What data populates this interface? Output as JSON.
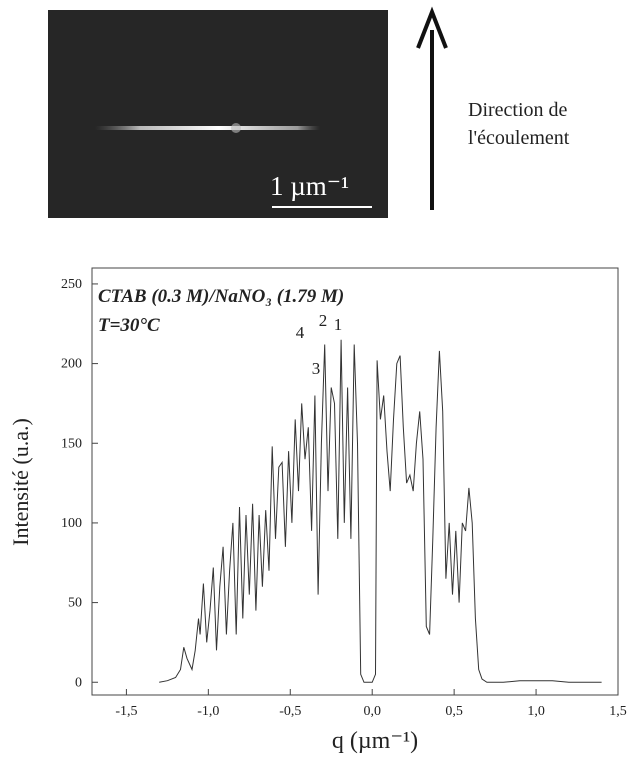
{
  "image": {
    "scale_bar": "1 µm⁻¹"
  },
  "flow_label": [
    "Direction de",
    "l'écoulement"
  ],
  "chart_data": {
    "type": "line",
    "annotations": [
      "CTAB (0.3 M)/NaNO₃ (1.79 M)",
      "T=30°C"
    ],
    "peak_labels": [
      "4",
      "3",
      "2",
      "1"
    ],
    "xlabel": "q (µm⁻¹)",
    "ylabel": "Intensité (u.a.)",
    "color": "#333333",
    "xlim": [
      -1.71,
      1.5
    ],
    "ylim": [
      -8,
      260
    ],
    "xticks": [
      {
        "value": -1.5,
        "label": "-1,5"
      },
      {
        "value": -1.0,
        "label": "-1,0"
      },
      {
        "value": -0.5,
        "label": "-0,5"
      },
      {
        "value": 0.0,
        "label": "0,0"
      },
      {
        "value": 0.5,
        "label": "0,5"
      },
      {
        "value": 1.0,
        "label": "1,0"
      },
      {
        "value": 1.5,
        "label": "1,5"
      }
    ],
    "yticks": [
      0,
      50,
      100,
      150,
      200,
      250
    ],
    "x": [
      -1.3,
      -1.25,
      -1.2,
      -1.17,
      -1.15,
      -1.13,
      -1.1,
      -1.08,
      -1.06,
      -1.05,
      -1.03,
      -1.01,
      -0.99,
      -0.97,
      -0.95,
      -0.93,
      -0.91,
      -0.89,
      -0.87,
      -0.85,
      -0.83,
      -0.81,
      -0.79,
      -0.77,
      -0.75,
      -0.73,
      -0.71,
      -0.69,
      -0.67,
      -0.65,
      -0.63,
      -0.61,
      -0.59,
      -0.57,
      -0.55,
      -0.53,
      -0.51,
      -0.49,
      -0.47,
      -0.45,
      -0.43,
      -0.41,
      -0.39,
      -0.37,
      -0.35,
      -0.33,
      -0.31,
      -0.29,
      -0.27,
      -0.25,
      -0.23,
      -0.21,
      -0.19,
      -0.17,
      -0.15,
      -0.13,
      -0.11,
      -0.09,
      -0.07,
      -0.05,
      -0.03,
      0.0,
      0.02,
      0.03,
      0.05,
      0.07,
      0.09,
      0.11,
      0.13,
      0.15,
      0.17,
      0.19,
      0.21,
      0.23,
      0.25,
      0.27,
      0.29,
      0.31,
      0.33,
      0.35,
      0.37,
      0.39,
      0.41,
      0.43,
      0.45,
      0.47,
      0.49,
      0.51,
      0.53,
      0.55,
      0.57,
      0.59,
      0.61,
      0.63,
      0.65,
      0.67,
      0.7,
      0.8,
      0.9,
      1.0,
      1.1,
      1.2,
      1.4
    ],
    "values": [
      0,
      1,
      3,
      8,
      22,
      15,
      8,
      20,
      40,
      30,
      62,
      25,
      45,
      72,
      20,
      60,
      85,
      30,
      70,
      100,
      30,
      110,
      40,
      105,
      55,
      112,
      45,
      105,
      60,
      108,
      70,
      148,
      90,
      135,
      138,
      85,
      145,
      100,
      165,
      120,
      175,
      140,
      160,
      95,
      180,
      55,
      150,
      212,
      120,
      185,
      175,
      90,
      215,
      100,
      185,
      90,
      212,
      150,
      5,
      0,
      0,
      0,
      5,
      202,
      165,
      180,
      145,
      120,
      165,
      200,
      205,
      160,
      125,
      130,
      120,
      150,
      170,
      140,
      35,
      30,
      90,
      160,
      208,
      170,
      65,
      100,
      55,
      95,
      50,
      100,
      95,
      122,
      100,
      40,
      8,
      2,
      0,
      0,
      1,
      1,
      1,
      0,
      0
    ]
  }
}
